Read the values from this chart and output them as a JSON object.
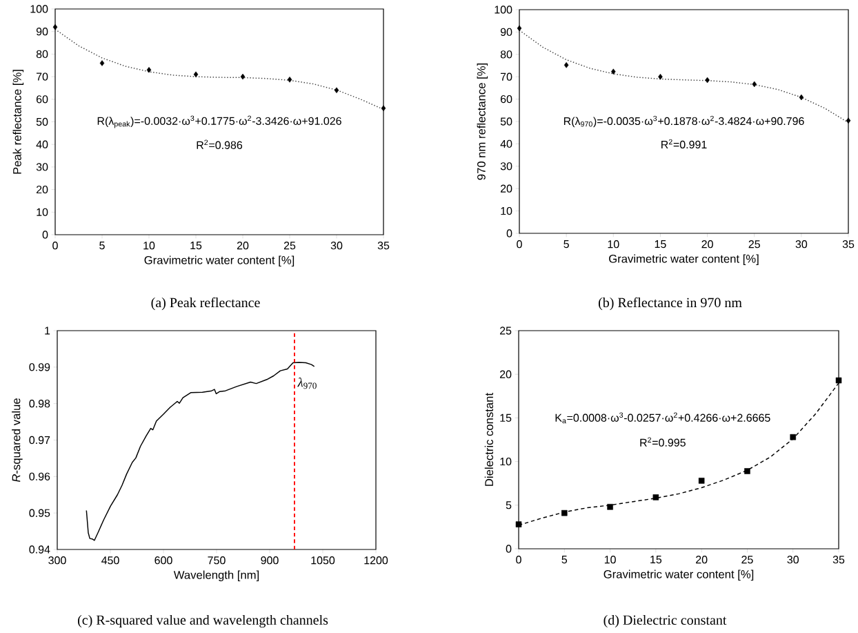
{
  "chart_data": [
    {
      "type": "scatter",
      "title": "(a) Peak reflectance",
      "xlabel": "Gravimetric water content [%]",
      "ylabel": "Peak reflectance [%]",
      "xlim": [
        0,
        35
      ],
      "ylim": [
        0,
        100
      ],
      "xticks": [
        0,
        5,
        10,
        15,
        20,
        25,
        30,
        35
      ],
      "yticks": [
        0,
        10,
        20,
        30,
        40,
        50,
        60,
        70,
        80,
        90,
        100
      ],
      "annotations": [
        "R(λ$_{peak}$)=-0.0032·ω$^{3}$+0.1775·ω$^{2}$-3.3426·ω+91.026",
        "R$^{2}$=0.986"
      ],
      "series": [
        {
          "marker": "diamond",
          "color": "#000000",
          "x": [
            0,
            5,
            10,
            15,
            20,
            25,
            30,
            35
          ],
          "values": [
            92,
            76,
            73,
            71,
            70,
            68.7,
            64,
            56
          ]
        },
        {
          "type": "line",
          "line_style": "dotted",
          "color": "#404040",
          "x": [
            0,
            2.5,
            5,
            7.5,
            10,
            12.5,
            15,
            17.5,
            20,
            22.5,
            25,
            27.5,
            30,
            32.5,
            35
          ],
          "values": [
            91,
            83.7,
            78.3,
            74.6,
            72.2,
            70.7,
            70,
            69.7,
            69.6,
            69.2,
            68.4,
            66.8,
            64.1,
            60.1,
            55.5
          ]
        }
      ]
    },
    {
      "type": "scatter",
      "title": "(b) Reflectance in 970 nm",
      "xlabel": "Gravimetric water content [%]",
      "ylabel": "970 nm reflectance [%]",
      "xlim": [
        0,
        35
      ],
      "ylim": [
        0,
        100
      ],
      "xticks": [
        0,
        5,
        10,
        15,
        20,
        25,
        30,
        35
      ],
      "yticks": [
        0,
        10,
        20,
        30,
        40,
        50,
        60,
        70,
        80,
        90,
        100
      ],
      "annotations": [
        "R(λ$_{970}$)=-0.0035·ω$^{3}$+0.1878·ω$^{2}$-3.4824·ω+90.796",
        "R$^{2}$=0.991"
      ],
      "series": [
        {
          "marker": "diamond",
          "color": "#000000",
          "x": [
            0,
            5,
            10,
            15,
            20,
            25,
            30,
            35
          ],
          "values": [
            91.7,
            75.2,
            72.3,
            70,
            68.5,
            66.7,
            60.8,
            50.4
          ]
        },
        {
          "type": "line",
          "line_style": "dotted",
          "color": "#404040",
          "x": [
            0,
            2.5,
            5,
            7.5,
            10,
            12.5,
            15,
            17.5,
            20,
            22.5,
            25,
            27.5,
            30,
            32.5,
            35
          ],
          "values": [
            90.8,
            83.2,
            77.6,
            73.8,
            71.3,
            69.8,
            69,
            68.6,
            68.3,
            67.7,
            66.5,
            64.3,
            60.8,
            55.9,
            49.5
          ]
        }
      ]
    },
    {
      "type": "line",
      "title": "(c) R-squared value and wavelength channels",
      "xlabel": "Wavelength [nm]",
      "ylabel": "*R*-squared value",
      "xlim": [
        300,
        1200
      ],
      "ylim": [
        0.94,
        1
      ],
      "xticks": [
        300,
        450,
        600,
        750,
        900,
        1050,
        1200
      ],
      "yticks": [
        0.94,
        0.95,
        0.96,
        0.97,
        0.98,
        0.99,
        1
      ],
      "ref_lines": [
        {
          "axis": "x",
          "value": 970,
          "label": "*λ*$_{970}$",
          "color": "#ff0000",
          "line_style": "dashed"
        }
      ],
      "series": [
        {
          "color": "#000000",
          "x": [
            382.4,
            387.6,
            392,
            398.6,
            405,
            415,
            431,
            450.5,
            470,
            483,
            496,
            512,
            522,
            535,
            551,
            564,
            570,
            580,
            600,
            619,
            639,
            645,
            655,
            677,
            710,
            736,
            744,
            749,
            759,
            775,
            807,
            846,
            862,
            892,
            911,
            930,
            950,
            966,
            983,
            1002,
            1018,
            1026
          ],
          "values": [
            0.9507,
            0.9446,
            0.943,
            0.9429,
            0.9425,
            0.9446,
            0.9481,
            0.9519,
            0.955,
            0.9576,
            0.9607,
            0.9639,
            0.9651,
            0.9683,
            0.9711,
            0.9732,
            0.9728,
            0.9752,
            0.9771,
            0.979,
            0.9806,
            0.9801,
            0.9816,
            0.983,
            0.9831,
            0.9835,
            0.9839,
            0.9827,
            0.9833,
            0.9835,
            0.9847,
            0.9859,
            0.9855,
            0.9866,
            0.9876,
            0.989,
            0.9895,
            0.9912,
            0.9913,
            0.9912,
            0.9907,
            0.9902
          ]
        }
      ]
    },
    {
      "type": "scatter",
      "title": "(d) Dielectric constant",
      "xlabel": "Gravimetric water content [%]",
      "ylabel": "Dielectric constant",
      "xlim": [
        0,
        35
      ],
      "ylim": [
        0,
        25
      ],
      "xticks": [
        0,
        5,
        10,
        15,
        20,
        25,
        30,
        35
      ],
      "yticks": [
        0,
        5,
        10,
        15,
        20,
        25
      ],
      "annotations": [
        "K$_{a}$=0.0008·ω$^{3}$-0.0257·ω$^{2}$+0.4266·ω+2.6665",
        "R$^{2}$=0.995"
      ],
      "series": [
        {
          "marker": "square",
          "color": "#000000",
          "x": [
            0,
            5,
            10,
            15,
            20,
            25,
            30,
            35
          ],
          "values": [
            2.8,
            4.1,
            4.8,
            5.9,
            7.8,
            8.9,
            12.8,
            19.3
          ]
        },
        {
          "type": "line",
          "line_style": "dashed",
          "color": "#000000",
          "x": [
            0,
            2.5,
            5,
            7.5,
            10,
            12.5,
            15,
            17.5,
            20,
            22.5,
            25,
            27.5,
            30,
            32.5,
            35
          ],
          "values": [
            2.7,
            3.5,
            4.2,
            4.7,
            5,
            5.4,
            5.8,
            6.3,
            7,
            7.9,
            9,
            10.5,
            12.6,
            15.5,
            19
          ]
        }
      ]
    }
  ]
}
